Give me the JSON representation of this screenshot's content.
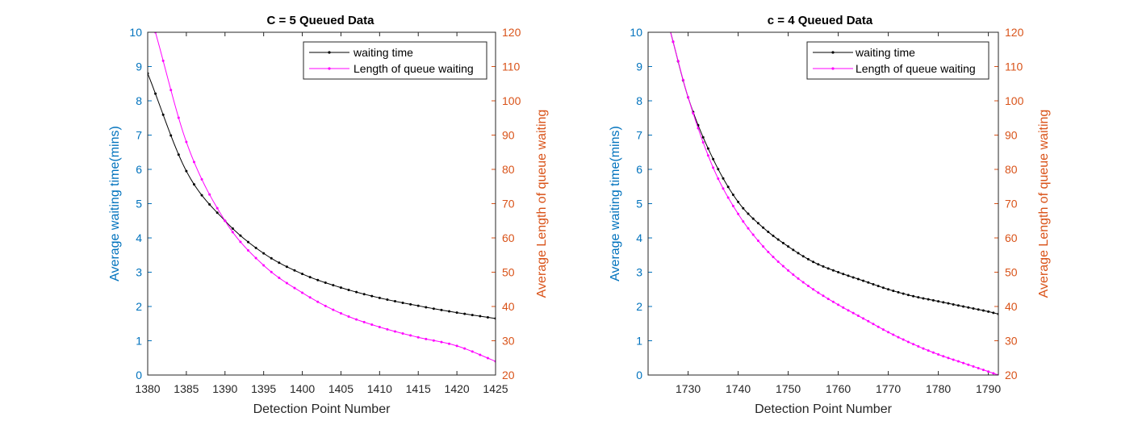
{
  "colors": {
    "left_axis": "#0072BD",
    "right_axis": "#D95319",
    "waiting_series": "#000000",
    "queue_series": "#FF00FF"
  },
  "chart_data": [
    {
      "type": "line",
      "title": "C = 5 Queued Data",
      "xlabel": "Detection Point Number",
      "ylabel_left": "Average waiting time(mins)",
      "ylabel_right": "Average Length of queue waiting",
      "xlim": [
        1380,
        1425
      ],
      "ylim_left": [
        0,
        10
      ],
      "ylim_right": [
        20,
        120
      ],
      "xticks": [
        1380,
        1385,
        1390,
        1395,
        1400,
        1405,
        1410,
        1415,
        1420,
        1425
      ],
      "yticks_left": [
        0,
        1,
        2,
        3,
        4,
        5,
        6,
        7,
        8,
        9,
        10
      ],
      "yticks_right": [
        20,
        30,
        40,
        50,
        60,
        70,
        80,
        90,
        100,
        110,
        120
      ],
      "grid": false,
      "legend_position": "top-right",
      "series": [
        {
          "name": "waiting time",
          "axis": "left",
          "color": "#000000",
          "x": [
            1380,
            1385,
            1390,
            1395,
            1400,
            1405,
            1410,
            1415,
            1420,
            1425
          ],
          "y": [
            8.8,
            5.95,
            4.5,
            3.55,
            2.95,
            2.55,
            2.25,
            2.02,
            1.82,
            1.65
          ]
        },
        {
          "name": "Length of queue waiting",
          "axis": "right",
          "color": "#FF00FF",
          "x": [
            1381,
            1385,
            1390,
            1395,
            1400,
            1405,
            1410,
            1415,
            1420,
            1425
          ],
          "y": [
            120,
            88,
            65,
            52,
            44,
            38,
            34,
            31,
            28.5,
            24
          ]
        }
      ]
    },
    {
      "type": "line",
      "title": "c = 4 Queued Data",
      "xlabel": "Detection Point Number",
      "ylabel_left": "Average waiting time(mins)",
      "ylabel_right": "Average Length of queue waiting",
      "xlim": [
        1722,
        1792
      ],
      "ylim_left": [
        0,
        10
      ],
      "ylim_right": [
        20,
        120
      ],
      "xticks": [
        1730,
        1740,
        1750,
        1760,
        1770,
        1780,
        1790
      ],
      "yticks_left": [
        0,
        1,
        2,
        3,
        4,
        5,
        6,
        7,
        8,
        9,
        10
      ],
      "yticks_right": [
        20,
        30,
        40,
        50,
        60,
        70,
        80,
        90,
        100,
        110,
        120
      ],
      "grid": false,
      "legend_position": "top-right",
      "series": [
        {
          "name": "waiting time",
          "axis": "left",
          "color": "#000000",
          "x": [
            1726.5,
            1730,
            1735,
            1740,
            1745,
            1750,
            1755,
            1760,
            1765,
            1770,
            1775,
            1780,
            1785,
            1790,
            1792
          ],
          "y": [
            10,
            8.1,
            6.3,
            5.05,
            4.3,
            3.75,
            3.3,
            3.0,
            2.75,
            2.5,
            2.3,
            2.15,
            2.0,
            1.85,
            1.78
          ]
        },
        {
          "name": "Length of queue waiting",
          "axis": "right",
          "color": "#FF00FF",
          "x": [
            1726.5,
            1730,
            1735,
            1740,
            1745,
            1750,
            1755,
            1760,
            1765,
            1770,
            1775,
            1780,
            1785,
            1790,
            1792
          ],
          "y": [
            120,
            101,
            80.5,
            67,
            57.5,
            50.5,
            45,
            40.5,
            36.5,
            32.5,
            29,
            26,
            23.5,
            21,
            20
          ]
        }
      ]
    }
  ]
}
